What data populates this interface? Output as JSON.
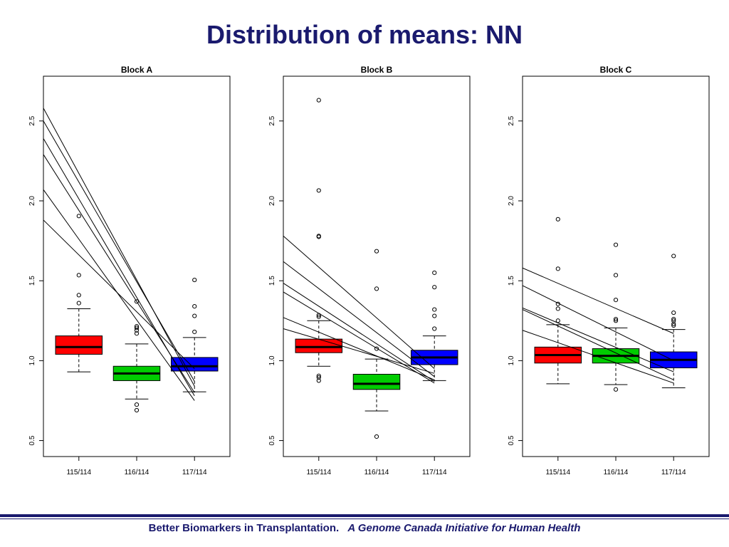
{
  "slide": {
    "title": "Distribution of means: NN",
    "footer_main": "Better Biomarkers in Transplantation.",
    "footer_italic": "A Genome Canada Initiative for Human Health"
  },
  "chart_data": [
    {
      "type": "box",
      "title": "Block A",
      "categories": [
        "115/114",
        "116/114",
        "117/114"
      ],
      "colors": [
        "#ff0000",
        "#00cc00",
        "#0000ff"
      ],
      "ylim": [
        0.4,
        2.78
      ],
      "yticks": [
        0.5,
        1.0,
        1.5,
        2.0,
        2.5
      ],
      "ytick_labels": [
        "0.5",
        "1.0",
        "1.5",
        "2.0",
        "2.5"
      ],
      "grid": false,
      "boxes": [
        {
          "low": 0.93,
          "q1": 1.04,
          "median": 1.085,
          "q3": 1.155,
          "high": 1.325,
          "outliers": [
            1.36,
            1.41,
            1.535,
            1.905
          ]
        },
        {
          "low": 0.76,
          "q1": 0.875,
          "median": 0.92,
          "q3": 0.965,
          "high": 1.105,
          "outliers": [
            0.69,
            0.725,
            1.17,
            1.19,
            1.205,
            1.215,
            1.37
          ]
        },
        {
          "low": 0.805,
          "q1": 0.935,
          "median": 0.965,
          "q3": 1.02,
          "high": 1.145,
          "outliers": [
            1.18,
            1.28,
            1.34,
            1.505
          ]
        }
      ],
      "lines": [
        {
          "from_y": 2.58,
          "to_y": 0.84
        },
        {
          "from_y": 2.5,
          "to_y": 0.87
        },
        {
          "from_y": 2.39,
          "to_y": 0.78
        },
        {
          "from_y": 2.29,
          "to_y": 0.8
        },
        {
          "from_y": 2.07,
          "to_y": 0.75
        },
        {
          "from_y": 1.88,
          "to_y": 0.95
        }
      ]
    },
    {
      "type": "box",
      "title": "Block B",
      "categories": [
        "115/114",
        "116/114",
        "117/114"
      ],
      "colors": [
        "#ff0000",
        "#00cc00",
        "#0000ff"
      ],
      "ylim": [
        0.4,
        2.78
      ],
      "yticks": [
        0.5,
        1.0,
        1.5,
        2.0,
        2.5
      ],
      "ytick_labels": [
        "0.5",
        "1.0",
        "1.5",
        "2.0",
        "2.5"
      ],
      "grid": false,
      "boxes": [
        {
          "low": 0.965,
          "q1": 1.05,
          "median": 1.085,
          "q3": 1.135,
          "high": 1.25,
          "outliers": [
            0.875,
            0.895,
            0.905,
            1.275,
            1.285,
            1.775,
            1.78,
            2.065,
            2.63
          ]
        },
        {
          "low": 0.685,
          "q1": 0.82,
          "median": 0.855,
          "q3": 0.915,
          "high": 1.01,
          "outliers": [
            0.525,
            1.075,
            1.45,
            1.685
          ]
        },
        {
          "low": 0.875,
          "q1": 0.975,
          "median": 1.02,
          "q3": 1.065,
          "high": 1.155,
          "outliers": [
            1.2,
            1.28,
            1.32,
            1.46,
            1.55
          ]
        }
      ],
      "lines": [
        {
          "from_y": 1.78,
          "to_y": 0.95
        },
        {
          "from_y": 1.62,
          "to_y": 0.9
        },
        {
          "from_y": 1.485,
          "to_y": 0.87
        },
        {
          "from_y": 1.43,
          "to_y": 0.86
        },
        {
          "from_y": 1.27,
          "to_y": 0.88
        },
        {
          "from_y": 1.2,
          "to_y": 0.92
        }
      ]
    },
    {
      "type": "box",
      "title": "Block C",
      "categories": [
        "115/114",
        "116/114",
        "117/114"
      ],
      "colors": [
        "#ff0000",
        "#00cc00",
        "#0000ff"
      ],
      "ylim": [
        0.4,
        2.78
      ],
      "yticks": [
        0.5,
        1.0,
        1.5,
        2.0,
        2.5
      ],
      "ytick_labels": [
        "0.5",
        "1.0",
        "1.5",
        "2.0",
        "2.5"
      ],
      "grid": false,
      "boxes": [
        {
          "low": 0.855,
          "q1": 0.985,
          "median": 1.035,
          "q3": 1.085,
          "high": 1.225,
          "outliers": [
            1.25,
            1.325,
            1.355,
            1.575,
            1.885
          ]
        },
        {
          "low": 0.85,
          "q1": 0.985,
          "median": 1.03,
          "q3": 1.075,
          "high": 1.205,
          "outliers": [
            0.82,
            1.25,
            1.26,
            1.38,
            1.535,
            1.725
          ]
        },
        {
          "low": 0.83,
          "q1": 0.955,
          "median": 1.005,
          "q3": 1.055,
          "high": 1.195,
          "outliers": [
            1.22,
            1.23,
            1.25,
            1.26,
            1.3,
            1.655
          ]
        }
      ],
      "lines": [
        {
          "from_y": 1.58,
          "to_y": 1.17
        },
        {
          "from_y": 1.47,
          "to_y": 1.0
        },
        {
          "from_y": 1.33,
          "to_y": 0.93
        },
        {
          "from_y": 1.32,
          "to_y": 0.88
        },
        {
          "from_y": 1.19,
          "to_y": 0.86
        }
      ]
    }
  ]
}
